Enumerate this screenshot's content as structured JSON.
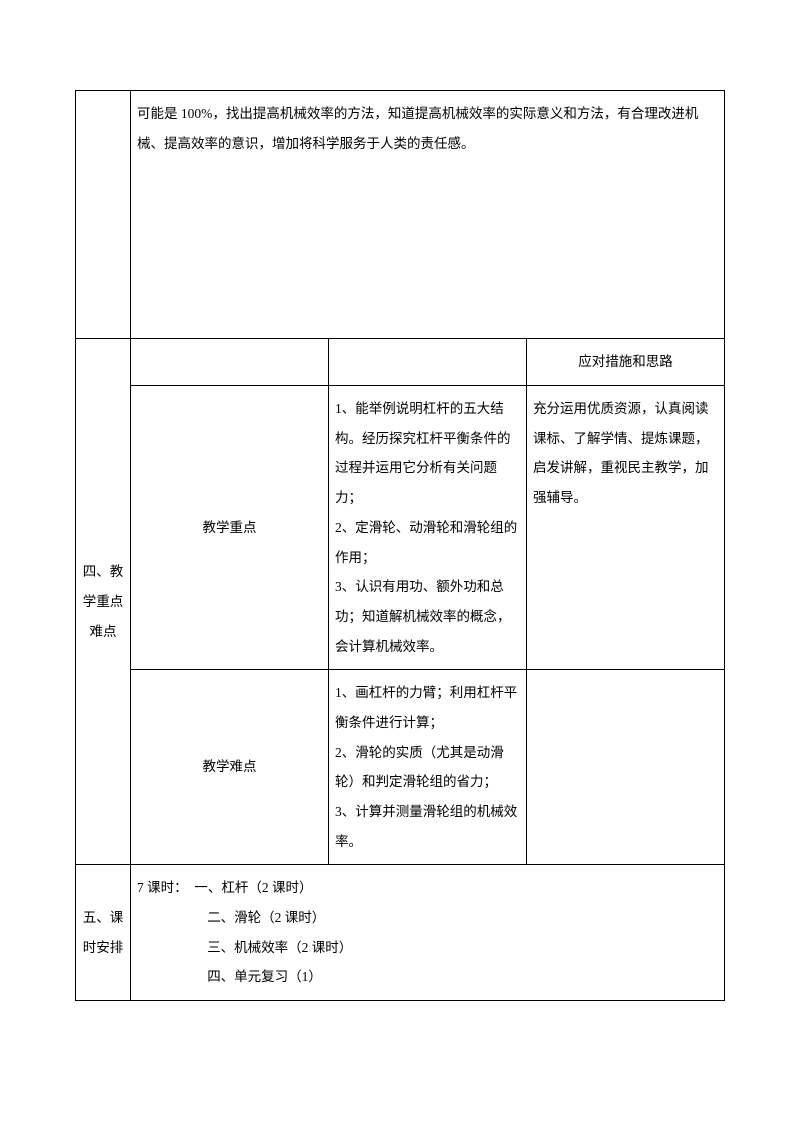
{
  "topRow": {
    "content": "可能是 100%，找出提高机械效率的方法，知道提高机械效率的实际意义和方法，有合理改进机械、提高效率的意识，增加将科学服务于人类的责任感。"
  },
  "section4": {
    "label": "四、教学重点难点",
    "headerMeasures": "应对措施和思路",
    "keyPoints": {
      "label": "教学重点",
      "content": "1、能举例说明杠杆的五大结构。经历探究杠杆平衡条件的过程并运用它分析有关问题力；\n2、定滑轮、动滑轮和滑轮组的作用；\n3、认识有用功、额外功和总功；知道解机械效率的概念，会计算机械效率。",
      "measures": "充分运用优质资源，认真阅读课标、了解学情、提炼课题，启发讲解，重视民主教学，加强辅导。"
    },
    "difficulties": {
      "label": "教学难点",
      "content": "1、画杠杆的力臂；利用杠杆平衡条件进行计算；\n2、滑轮的实质（尤其是动滑轮）和判定滑轮组的省力；\n3、计算并测量滑轮组的机械效率。",
      "measures": ""
    }
  },
  "section5": {
    "label": "五、课时安排",
    "line1": "7 课时：　一、杠杆（2 课时）",
    "line2": "二、滑轮（2 课时）",
    "line3": "三、机械效率（2 课时）",
    "line4": "四、单元复习（1）"
  }
}
